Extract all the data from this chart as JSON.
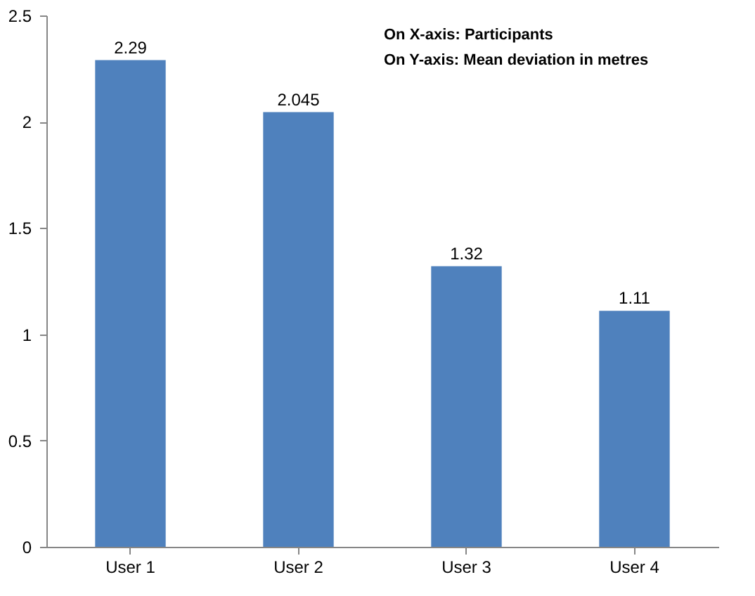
{
  "chart_data": {
    "type": "bar",
    "categories": [
      "User 1",
      "User 2",
      "User 3",
      "User 4"
    ],
    "values": [
      2.29,
      2.045,
      1.32,
      1.11
    ],
    "color": "#4f81bd",
    "ylim": [
      0,
      2.5
    ],
    "yticks": [
      0,
      0.5,
      1,
      1.5,
      2,
      2.5
    ],
    "grid": false,
    "data_labels": true,
    "annotations": [
      "On X-axis:  Participants",
      "On Y-axis:  Mean deviation in metres"
    ]
  }
}
